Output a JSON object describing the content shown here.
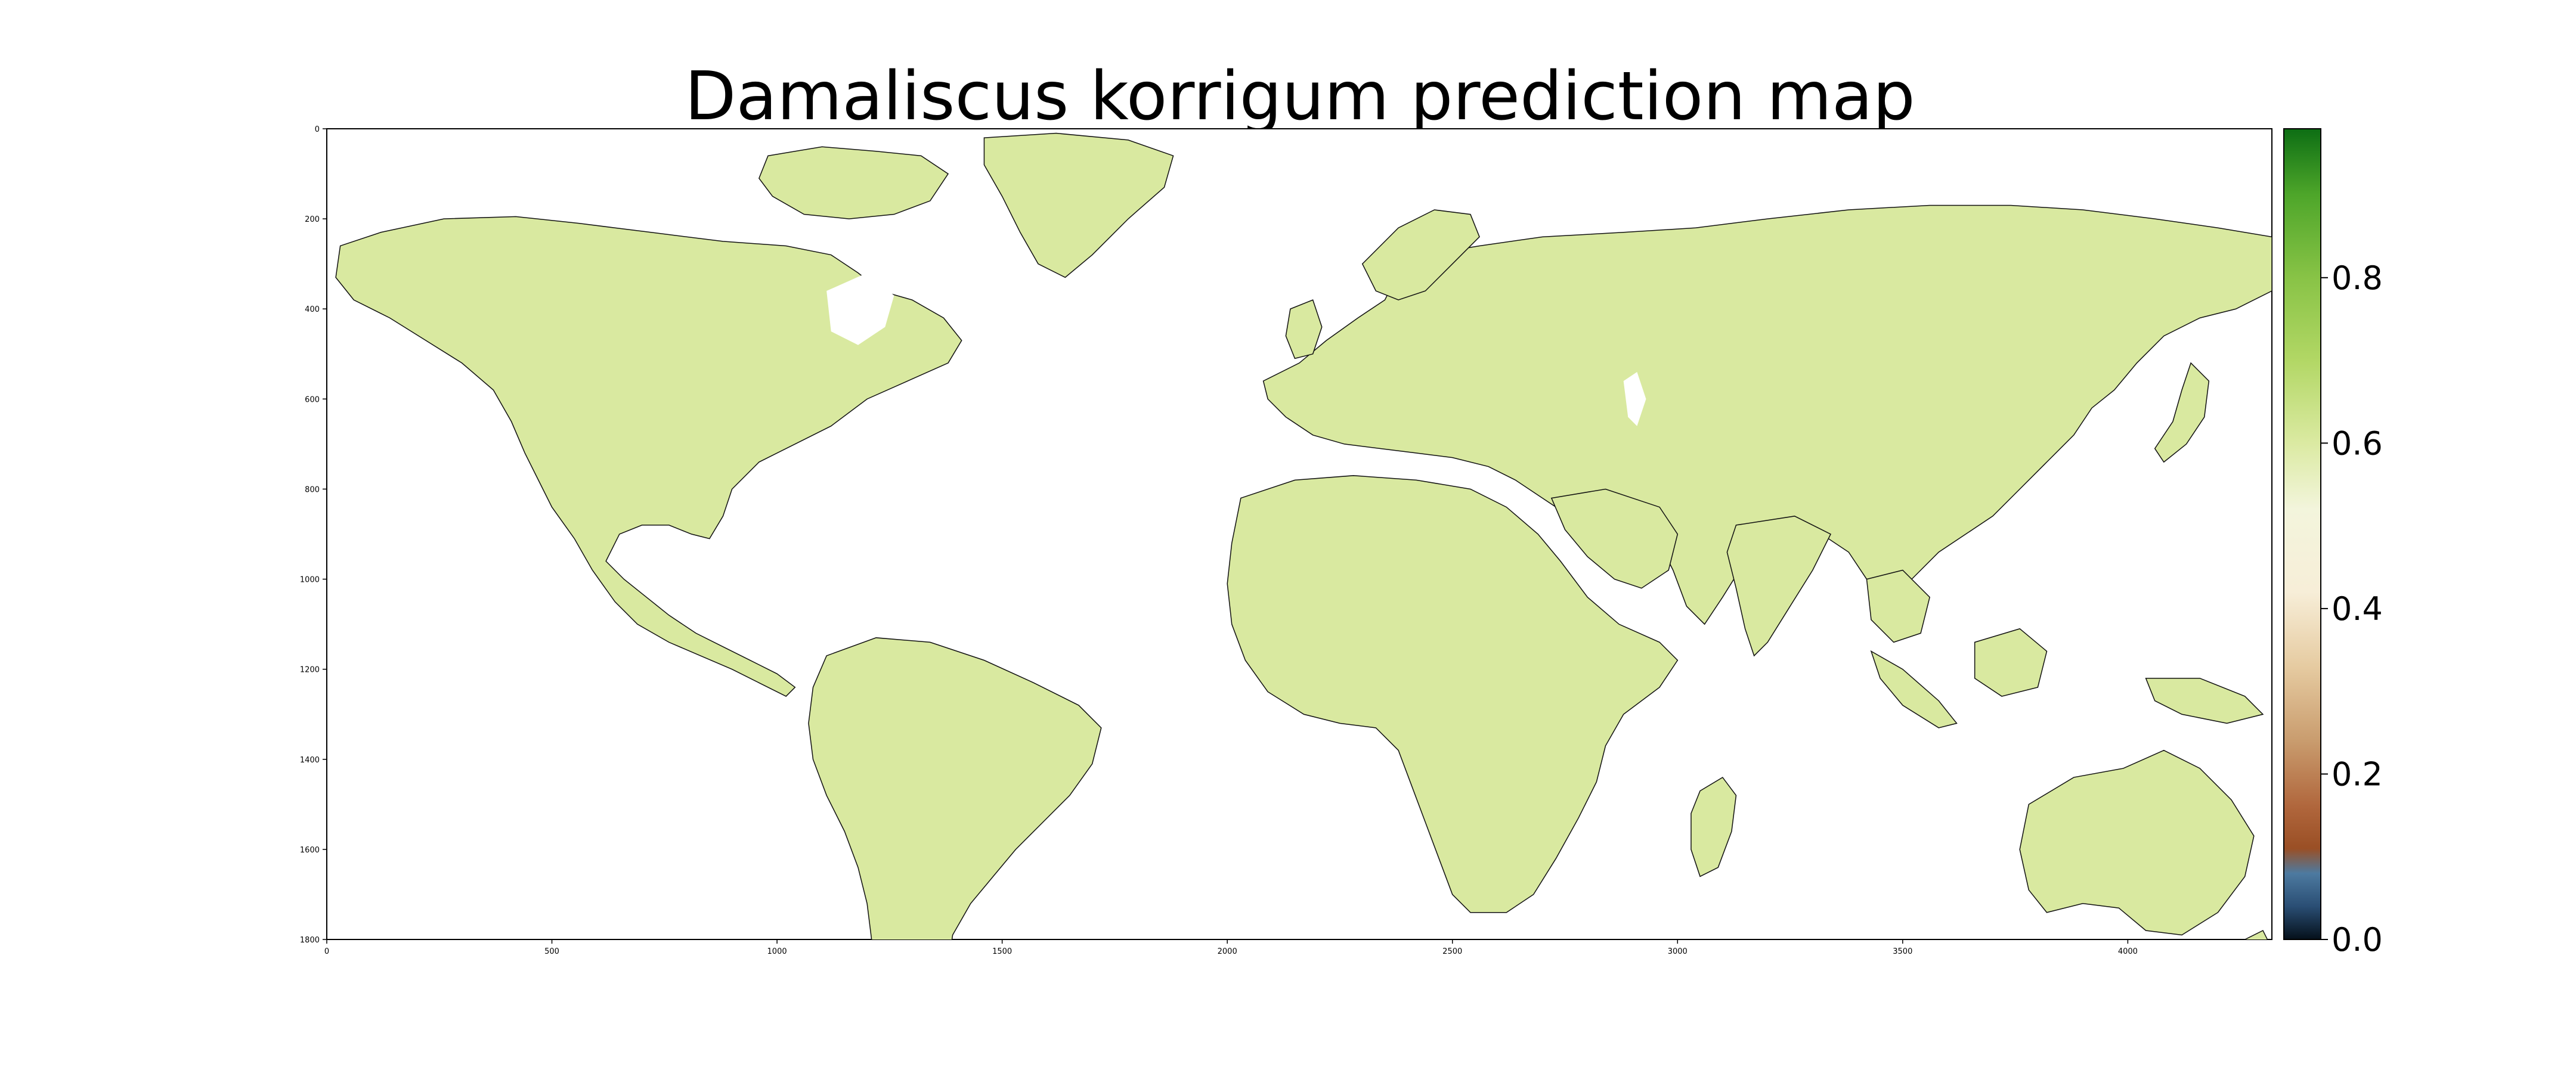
{
  "title": "Damaliscus korrigum prediction map",
  "map": {
    "x_ticks": [
      "0",
      "500",
      "1000",
      "1500",
      "2000",
      "2500",
      "3000",
      "3500",
      "4000"
    ],
    "x_tick_values": [
      0,
      500,
      1000,
      1500,
      2000,
      2500,
      3000,
      3500,
      4000
    ],
    "y_ticks": [
      "0",
      "200",
      "400",
      "600",
      "800",
      "1000",
      "1200",
      "1400",
      "1600",
      "1800"
    ],
    "y_tick_values": [
      0,
      200,
      400,
      600,
      800,
      1000,
      1200,
      1400,
      1600,
      1800
    ],
    "xlim": [
      0,
      4320
    ],
    "ylim": [
      0,
      1800
    ],
    "land_color": "#d9e9a0",
    "land_color_dark": "#c2dc7c",
    "ocean_color": "#ffffff"
  },
  "colorbar": {
    "ticks": [
      "0.0",
      "0.2",
      "0.4",
      "0.6",
      "0.8"
    ],
    "tick_values": [
      0.0,
      0.2,
      0.4,
      0.6,
      0.8
    ],
    "range": [
      0.0,
      0.98
    ],
    "stops": [
      {
        "v": 0.0,
        "c": "#05101a"
      },
      {
        "v": 0.04,
        "c": "#2a4e74"
      },
      {
        "v": 0.08,
        "c": "#4d7aa0"
      },
      {
        "v": 0.11,
        "c": "#9a4f25"
      },
      {
        "v": 0.16,
        "c": "#b0663c"
      },
      {
        "v": 0.24,
        "c": "#c99c6e"
      },
      {
        "v": 0.33,
        "c": "#e6cba1"
      },
      {
        "v": 0.42,
        "c": "#f7eed8"
      },
      {
        "v": 0.52,
        "c": "#f3f5dc"
      },
      {
        "v": 0.6,
        "c": "#dbeaa2"
      },
      {
        "v": 0.7,
        "c": "#b2d765"
      },
      {
        "v": 0.8,
        "c": "#88c346"
      },
      {
        "v": 0.9,
        "c": "#4ea62a"
      },
      {
        "v": 0.98,
        "c": "#0d6e14"
      }
    ]
  },
  "chart_data": {
    "type": "heatmap",
    "title": "Damaliscus korrigum prediction map",
    "xlim": [
      0,
      4320
    ],
    "ylim": [
      1800,
      0
    ],
    "colorbar_range": [
      0.0,
      0.98
    ],
    "colorbar_ticks": [
      0.0,
      0.2,
      0.4,
      0.6,
      0.8
    ],
    "typical_land_value": 0.58,
    "ocean": "no data (white)"
  }
}
